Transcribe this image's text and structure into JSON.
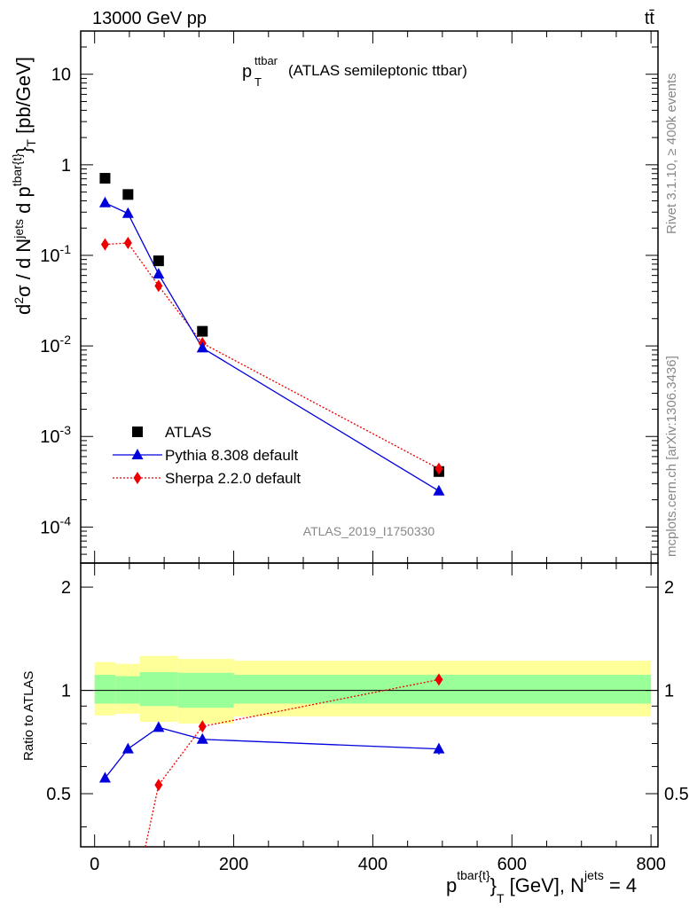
{
  "header": {
    "energy": "13000 GeV pp",
    "process": "tt̄"
  },
  "title": {
    "main": "p",
    "sub": "T",
    "sup": "ttbar",
    "rest": "(ATLAS semileptonic ttbar)"
  },
  "side_labels": {
    "rivet": "Rivet 3.1.10, ≥ 400k events",
    "mcplots": "mcplots.cern.ch [arXiv:1306.3436]"
  },
  "watermark": "ATLAS_2019_I1750330",
  "ratio_ylabel": "Ratio to ATLAS",
  "colors": {
    "atlas": "#000000",
    "pythia": "#0000dd",
    "sherpa": "#ee0000",
    "band_inner": "#99ff99",
    "band_outer": "#ffff99"
  },
  "chart_data": [
    {
      "type": "scatter",
      "panel": "main",
      "xlim": [
        -20,
        810
      ],
      "ylim": [
        4e-05,
        30
      ],
      "yscale": "log",
      "ytick_labels": [
        "10",
        "1",
        "10^-1",
        "10^-2",
        "10^-3",
        "10^-4"
      ],
      "legend": "bottom-left",
      "series": [
        {
          "name": "ATLAS",
          "marker": "square",
          "x": [
            15,
            48,
            92,
            155,
            495
          ],
          "y": [
            0.71,
            0.47,
            0.087,
            0.0145,
            0.00041
          ]
        },
        {
          "name": "Pythia 8.308 default",
          "marker": "triangle",
          "x": [
            15,
            48,
            92,
            155,
            495
          ],
          "y": [
            0.38,
            0.29,
            0.062,
            0.0095,
            0.00025
          ]
        },
        {
          "name": "Sherpa 2.2.0 default",
          "marker": "diamond",
          "x": [
            15,
            48,
            92,
            155,
            495
          ],
          "y": [
            0.132,
            0.137,
            0.046,
            0.0107,
            0.00044
          ]
        }
      ]
    },
    {
      "type": "line",
      "panel": "ratio",
      "xlim": [
        -20,
        810
      ],
      "ylim": [
        0.35,
        2.35
      ],
      "yscale": "log",
      "xtick_labels": [
        "0",
        "200",
        "400",
        "600",
        "800"
      ],
      "ytick_labels": [
        "0.5",
        "1",
        "2"
      ],
      "xlabel": {
        "base": "p",
        "sup": "tbar{t}",
        "sub": "T",
        "unit": " [GeV], N",
        "sup2": "jets",
        "tail": " = 4"
      },
      "bands": {
        "edges": [
          0,
          30,
          65,
          120,
          200,
          800
        ],
        "inner": [
          [
            0.915,
            1.11
          ],
          [
            0.915,
            1.1
          ],
          [
            0.9,
            1.13
          ],
          [
            0.89,
            1.125
          ],
          [
            0.915,
            1.11
          ]
        ],
        "outer": [
          [
            0.845,
            1.21
          ],
          [
            0.855,
            1.195
          ],
          [
            0.81,
            1.26
          ],
          [
            0.8,
            1.235
          ],
          [
            0.84,
            1.22
          ]
        ]
      },
      "series": [
        {
          "name": "Pythia 8.308 default",
          "x": [
            15,
            48,
            92,
            155,
            495
          ],
          "y": [
            0.555,
            0.675,
            0.78,
            0.72,
            0.675
          ],
          "err": [
            0,
            0,
            0,
            0,
            0.025
          ]
        },
        {
          "name": "Sherpa 2.2.0 default",
          "x": [
            73,
            92,
            155,
            495
          ],
          "y": [
            0.35,
            0.53,
            0.785,
            1.075
          ],
          "err": [
            0,
            0,
            0,
            0.02
          ]
        }
      ]
    }
  ]
}
